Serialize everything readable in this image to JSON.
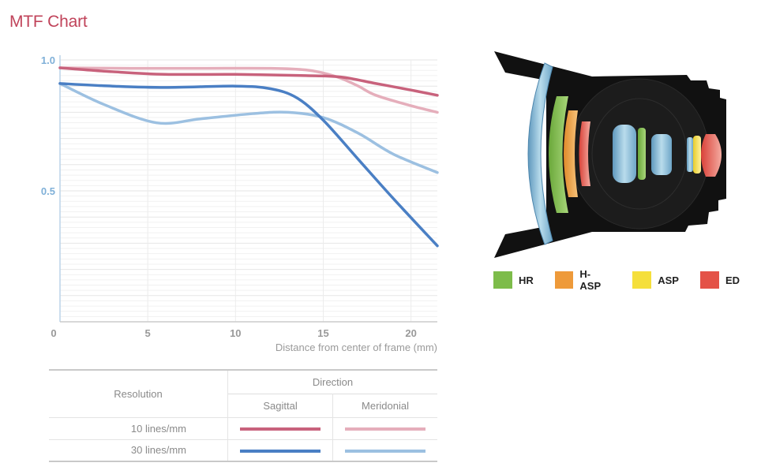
{
  "page": {
    "title": "MTF Chart"
  },
  "chart_data": {
    "type": "line",
    "xlabel": "Distance from center of frame (mm)",
    "ylabel": "",
    "xlim": [
      0,
      21.5
    ],
    "ylim": [
      0,
      1.0
    ],
    "x_ticks": [
      "0",
      "5",
      "10",
      "15",
      "20"
    ],
    "y_ticks": [
      "1.0",
      "0.5"
    ],
    "grid": true,
    "series": [
      {
        "name": "10 lines/mm Sagittal",
        "color": "#c8627c",
        "x": [
          0,
          3,
          6,
          10,
          14,
          16,
          18,
          20,
          21.5
        ],
        "y": [
          0.97,
          0.955,
          0.945,
          0.945,
          0.94,
          0.935,
          0.91,
          0.885,
          0.865
        ]
      },
      {
        "name": "10 lines/mm Meridonial",
        "color": "#e5aebb",
        "x": [
          0,
          4,
          8,
          12,
          14,
          15,
          16,
          17,
          18,
          20,
          21.5
        ],
        "y": [
          0.97,
          0.968,
          0.968,
          0.968,
          0.962,
          0.95,
          0.93,
          0.9,
          0.865,
          0.825,
          0.8
        ]
      },
      {
        "name": "30 lines/mm Sagittal",
        "color": "#4a7fc4",
        "x": [
          0,
          3,
          6,
          10,
          12,
          13.5,
          15,
          17,
          19,
          21.5
        ],
        "y": [
          0.91,
          0.9,
          0.895,
          0.9,
          0.89,
          0.855,
          0.77,
          0.62,
          0.47,
          0.29
        ]
      },
      {
        "name": "30 lines/mm Meridonial",
        "color": "#9cc0e1",
        "x": [
          0,
          2.5,
          5.5,
          8,
          11,
          13,
          15,
          17,
          19,
          21.5
        ],
        "y": [
          0.91,
          0.83,
          0.76,
          0.775,
          0.795,
          0.8,
          0.78,
          0.72,
          0.64,
          0.57
        ]
      }
    ]
  },
  "legend_table": {
    "direction_label": "Direction",
    "resolution_label": "Resolution",
    "sagittal_label": "Sagittal",
    "meridonial_label": "Meridonial",
    "rows": [
      {
        "label": "10 lines/mm",
        "sagittal_color": "#c8627c",
        "meridonial_color": "#e5aebb"
      },
      {
        "label": "30 lines/mm",
        "sagittal_color": "#4a7fc4",
        "meridonial_color": "#9cc0e1"
      }
    ]
  },
  "lens_legend": [
    {
      "label": "HR",
      "color": "#7dbc4a"
    },
    {
      "label": "H-ASP",
      "color": "#ee9a3a"
    },
    {
      "label": "ASP",
      "color": "#f5df3b"
    },
    {
      "label": "ED",
      "color": "#e45247"
    }
  ]
}
